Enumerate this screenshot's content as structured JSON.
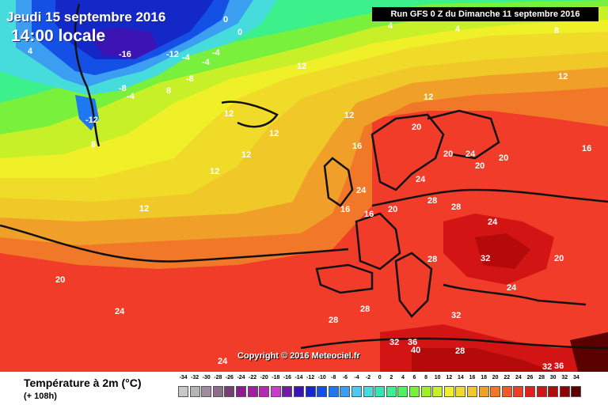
{
  "header": {
    "date": "Jeudi 15 septembre 2016",
    "time": "14:00 locale",
    "run": "Run GFS 0 Z du Dimanche 11 septembre 2016"
  },
  "copyright": "Copyright © 2016 Meteociel.fr",
  "legend": {
    "title": "Température à 2m (°C)",
    "subtitle": "(+ 108h)",
    "scale": [
      {
        "value": "-34",
        "color": "#c8c8c8"
      },
      {
        "value": "-32",
        "color": "#b4b4b4"
      },
      {
        "value": "-30",
        "color": "#a08ca0"
      },
      {
        "value": "-28",
        "color": "#8c6e8c"
      },
      {
        "value": "-26",
        "color": "#783c78"
      },
      {
        "value": "-24",
        "color": "#8c1e8c"
      },
      {
        "value": "-22",
        "color": "#a01ea0"
      },
      {
        "value": "-20",
        "color": "#b428b4"
      },
      {
        "value": "-18",
        "color": "#c83cc8"
      },
      {
        "value": "-16",
        "color": "#6e1ea0"
      },
      {
        "value": "-14",
        "color": "#3c14b4"
      },
      {
        "value": "-12",
        "color": "#1428c8"
      },
      {
        "value": "-10",
        "color": "#1450e6"
      },
      {
        "value": "-8",
        "color": "#1e78f0"
      },
      {
        "value": "-6",
        "color": "#3c9ef0"
      },
      {
        "value": "-4",
        "color": "#50c8f0"
      },
      {
        "value": "-2",
        "color": "#46dcdc"
      },
      {
        "value": "0",
        "color": "#32e6b4"
      },
      {
        "value": "2",
        "color": "#3cf08c"
      },
      {
        "value": "4",
        "color": "#50f064"
      },
      {
        "value": "6",
        "color": "#78f03c"
      },
      {
        "value": "8",
        "color": "#a0f028"
      },
      {
        "value": "10",
        "color": "#c8f028"
      },
      {
        "value": "12",
        "color": "#f0f028"
      },
      {
        "value": "14",
        "color": "#f0dc28"
      },
      {
        "value": "16",
        "color": "#f0c828"
      },
      {
        "value": "18",
        "color": "#f0a028"
      },
      {
        "value": "20",
        "color": "#f07828"
      },
      {
        "value": "22",
        "color": "#f05a28"
      },
      {
        "value": "24",
        "color": "#f03c28"
      },
      {
        "value": "26",
        "color": "#e61e1e"
      },
      {
        "value": "28",
        "color": "#d21414"
      },
      {
        "value": "30",
        "color": "#b40a0a"
      },
      {
        "value": "32",
        "color": "#8c0505"
      },
      {
        "value": "34",
        "color": "#5a0000"
      }
    ]
  },
  "map_labels": [
    "-16",
    "-12",
    "-12",
    "-8",
    "-8",
    "-4",
    "-4",
    "-4",
    "-4",
    "0",
    "0",
    "4",
    "4",
    "4",
    "8",
    "8",
    "8",
    "12",
    "12",
    "12",
    "12",
    "12",
    "12",
    "12",
    "12",
    "12",
    "16",
    "16",
    "16",
    "16",
    "20",
    "20",
    "20",
    "20",
    "20",
    "20",
    "20",
    "24",
    "24",
    "24",
    "24",
    "24",
    "24",
    "24",
    "28",
    "28",
    "28",
    "28",
    "28",
    "28",
    "32",
    "32",
    "32",
    "32",
    "36",
    "36",
    "40"
  ],
  "colors": {
    "cold": "#1428c8",
    "cool": "#50c8f0",
    "mild": "#a0f028",
    "warm": "#f0dc28",
    "hot": "#f05a28",
    "very_hot": "#d21414"
  }
}
